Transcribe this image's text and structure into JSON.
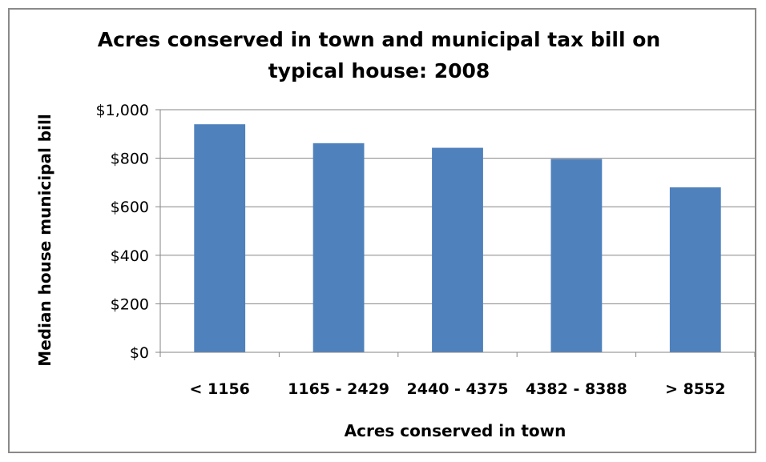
{
  "chart_data": {
    "type": "bar",
    "title_lines": [
      "Acres conserved in town and municipal  tax bill on",
      "typical house: 2008"
    ],
    "xlabel": "Acres conserved in town",
    "ylabel": "Median house municipal bill",
    "categories": [
      "< 1156",
      "1165 - 2429",
      "2440 - 4375",
      "4382 - 8388",
      "> 8552"
    ],
    "values": [
      940,
      862,
      843,
      797,
      680
    ],
    "ylim": [
      0,
      1000
    ],
    "yticks": [
      0,
      200,
      400,
      600,
      800,
      1000
    ],
    "ytick_labels": [
      "$0",
      "$200",
      "$400",
      "$600",
      "$800",
      "$1,000"
    ],
    "grid": true,
    "legend": "none",
    "bar_color": "#4f81bd",
    "gridline_color": "#868686",
    "axis_color": "#868686"
  }
}
